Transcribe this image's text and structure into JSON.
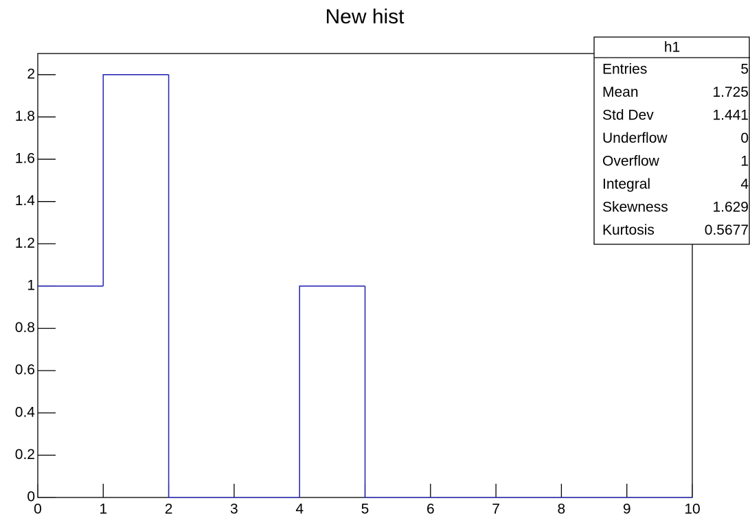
{
  "chart_data": {
    "type": "histogram",
    "title": "New hist",
    "bins": [
      0,
      1,
      2,
      3,
      4,
      5,
      6,
      7,
      8,
      9,
      10
    ],
    "values": [
      1,
      2,
      0,
      0,
      1,
      0,
      0,
      0,
      0,
      0
    ],
    "color": "#2b2bb5",
    "xlim": [
      0,
      10
    ],
    "xticks": [
      0,
      1,
      2,
      3,
      4,
      5,
      6,
      7,
      8,
      9,
      10
    ],
    "ylim": [
      0,
      2.1
    ],
    "yticks": [
      0,
      0.2,
      0.4,
      0.6,
      0.8,
      1,
      1.2,
      1.4,
      1.6,
      1.8,
      2
    ],
    "grid": false,
    "stats": {
      "title": "h1",
      "rows": [
        {
          "label": "Entries",
          "value": 5
        },
        {
          "label": "Mean",
          "value": 1.725
        },
        {
          "label": "Std Dev",
          "value": 1.441
        },
        {
          "label": "Underflow",
          "value": 0
        },
        {
          "label": "Overflow",
          "value": 1
        },
        {
          "label": "Integral",
          "value": 4
        },
        {
          "label": "Skewness",
          "value": 1.629
        },
        {
          "label": "Kurtosis",
          "value": 0.5677
        }
      ]
    }
  }
}
